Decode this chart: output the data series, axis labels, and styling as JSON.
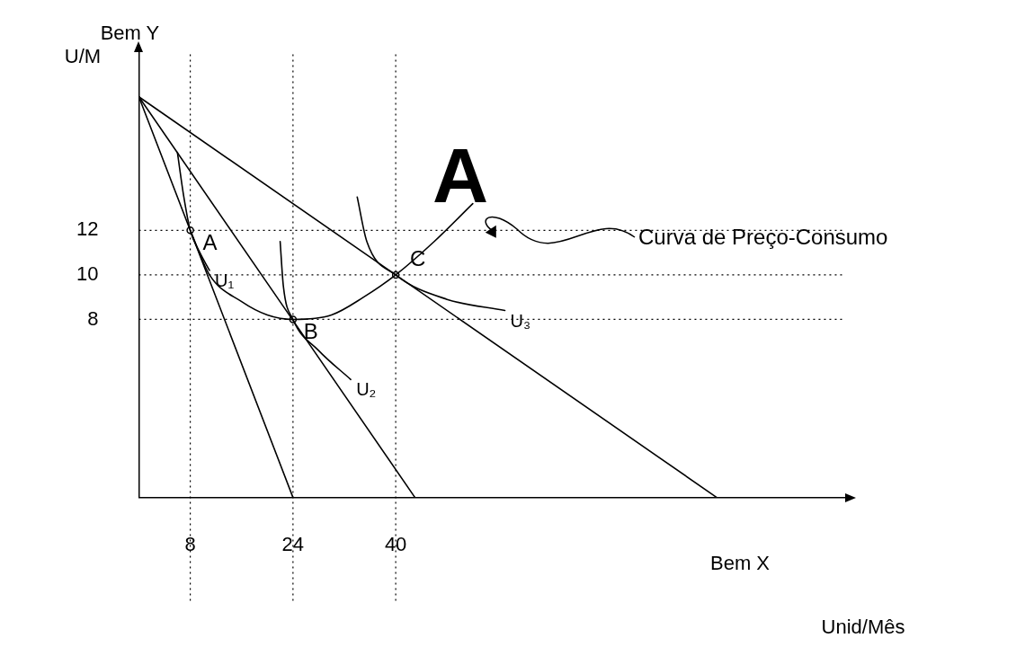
{
  "chart_data": {
    "type": "line",
    "xlabel": "Bem X",
    "ylabel": "Bem Y",
    "xlim": [
      0,
      110
    ],
    "ylim": [
      0,
      20
    ],
    "xticks": [
      8,
      24,
      40
    ],
    "yticks": [
      8,
      10,
      12
    ],
    "grid": false,
    "legend": false,
    "marker": "none",
    "line_style": "solid",
    "series": [
      {
        "color": "#000000",
        "x": [
          0,
          24
        ],
        "values": [
          18,
          0
        ]
      },
      {
        "color": "#000000",
        "x": [
          0,
          43
        ],
        "values": [
          18,
          0
        ]
      },
      {
        "color": "#000000",
        "x": [
          0,
          90
        ],
        "values": [
          18,
          0
        ]
      },
      {
        "name": "U₁",
        "color": "#000000",
        "x": [
          6,
          7,
          8,
          9.5,
          11
        ],
        "values": [
          15.5,
          13.5,
          12,
          11,
          10.2
        ]
      },
      {
        "name": "U₂",
        "color": "#000000",
        "x": [
          22,
          22.5,
          24,
          28,
          33
        ],
        "values": [
          11.5,
          9.5,
          8,
          6.6,
          5.3
        ]
      },
      {
        "name": "U₃",
        "color": "#000000",
        "x": [
          34,
          35.5,
          40,
          48,
          57
        ],
        "values": [
          13.5,
          11.5,
          10,
          8.9,
          8.4
        ]
      },
      {
        "name": "Curva de Preço-Consumo",
        "color": "#000000",
        "x": [
          8,
          11,
          16,
          20,
          24,
          30,
          35,
          40,
          46,
          52
        ],
        "values": [
          12,
          10,
          8.8,
          8.2,
          8,
          8.2,
          9,
          10,
          11.5,
          13.2
        ]
      },
      {
        "type": "scatter",
        "marker": "circle",
        "color": "#000000",
        "x": [
          8,
          24,
          40
        ],
        "values": [
          12,
          8,
          10
        ]
      }
    ],
    "ref_lines": [
      {
        "axis": "x",
        "value": 8,
        "line_style": "dotted"
      },
      {
        "axis": "x",
        "value": 24,
        "line_style": "dotted"
      },
      {
        "axis": "x",
        "value": 40,
        "line_style": "dotted"
      },
      {
        "axis": "y",
        "value": 12,
        "line_style": "dotted"
      },
      {
        "axis": "y",
        "value": 10,
        "line_style": "dotted"
      },
      {
        "axis": "y",
        "value": 8,
        "line_style": "dotted"
      }
    ],
    "annotations": [
      {
        "text": "A",
        "x": 8,
        "y": 12
      },
      {
        "text": "B",
        "x": 24,
        "y": 8
      },
      {
        "text": "C",
        "x": 40,
        "y": 10
      },
      "U/M",
      "Unid/Mês",
      "A"
    ]
  }
}
